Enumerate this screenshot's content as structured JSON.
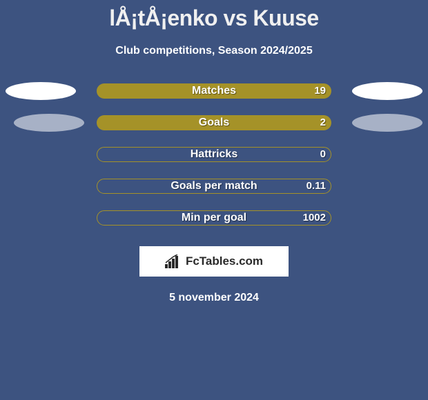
{
  "title": "lÅ¡tÅ¡enko vs Kuuse",
  "subtitle": "Club competitions, Season 2024/2025",
  "colors": {
    "background": "#3d5380",
    "bar_fill": "#a59228",
    "bar_border": "#a59228",
    "ellipse": "#ffffff",
    "text": "#ffffff"
  },
  "stats": [
    {
      "label": "Matches",
      "value": "19",
      "fill_pct": 100,
      "outline_pct": 0,
      "show_left_ellipse": true,
      "show_right_ellipse": true,
      "left_dim": false,
      "right_dim": false
    },
    {
      "label": "Goals",
      "value": "2",
      "fill_pct": 100,
      "outline_pct": 0,
      "show_left_ellipse": true,
      "show_right_ellipse": true,
      "left_dim": true,
      "right_dim": true
    },
    {
      "label": "Hattricks",
      "value": "0",
      "fill_pct": 0,
      "outline_pct": 100,
      "show_left_ellipse": false,
      "show_right_ellipse": false,
      "left_dim": false,
      "right_dim": false
    },
    {
      "label": "Goals per match",
      "value": "0.11",
      "fill_pct": 0,
      "outline_pct": 100,
      "show_left_ellipse": false,
      "show_right_ellipse": false,
      "left_dim": false,
      "right_dim": false
    },
    {
      "label": "Min per goal",
      "value": "1002",
      "fill_pct": 0,
      "outline_pct": 100,
      "show_left_ellipse": false,
      "show_right_ellipse": false,
      "left_dim": false,
      "right_dim": false
    }
  ],
  "logo": {
    "text": "FcTables.com"
  },
  "date": "5 november 2024"
}
